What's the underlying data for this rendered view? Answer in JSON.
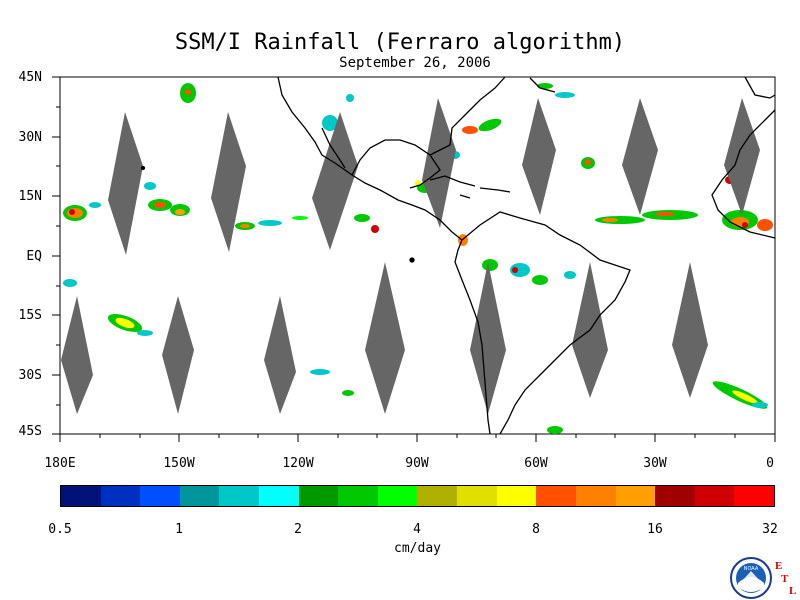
{
  "title": "SSM/I Rainfall (Ferraro algorithm)",
  "subtitle": "September 26, 2006",
  "lat_labels": [
    "45N",
    "30N",
    "15N",
    "EQ",
    "15S",
    "30S",
    "45S"
  ],
  "lon_labels": [
    "180E",
    "150W",
    "120W",
    "90W",
    "60W",
    "30W",
    "0"
  ],
  "colorbar": {
    "ticks": [
      "0.5",
      "1",
      "2",
      "4",
      "8",
      "16",
      "32"
    ],
    "units": "cm/day",
    "colors": [
      "#00127a",
      "#0030c0",
      "#0050ff",
      "#00969a",
      "#00c8c8",
      "#00ffff",
      "#009a00",
      "#00c800",
      "#00ff00",
      "#b0b000",
      "#e0e000",
      "#ffff00",
      "#ff5000",
      "#ff8000",
      "#ffa000",
      "#a00000",
      "#d00000",
      "#ff0000"
    ]
  },
  "logo": {
    "icon": "noaa-logo-icon",
    "text": "NOAA",
    "etl": [
      "E",
      "T",
      "L"
    ]
  },
  "swath_gap_color": "#666666"
}
